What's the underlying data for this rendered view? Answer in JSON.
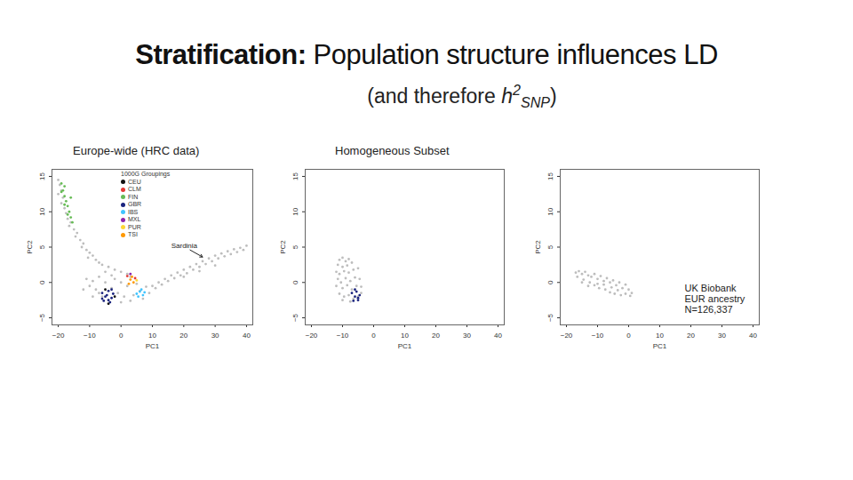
{
  "title": [
    {
      "text": "Stratification:",
      "style": "bold"
    },
    {
      "text": " Population structure influences LD"
    }
  ],
  "subtitle": [
    {
      "text": "(and therefore "
    },
    {
      "text": "h",
      "style": "italic"
    },
    {
      "text": "2",
      "style": "italic-sup"
    },
    {
      "text": "SNP",
      "style": "italic-sub"
    },
    {
      "text": ")"
    }
  ],
  "chart_data": [
    {
      "type": "scatter",
      "title": "Europe-wide (HRC data)",
      "x_label": "PC1",
      "y_label": "PC2",
      "xlim": [
        -22,
        42
      ],
      "ylim": [
        -6,
        16
      ],
      "xticks": [
        -20,
        -10,
        0,
        10,
        20,
        30,
        40
      ],
      "yticks": [
        -5,
        0,
        5,
        10,
        15
      ],
      "legend": "top",
      "legend_title": "1000G Groupings",
      "series": [
        {
          "color": "#bdbdbd",
          "x": [
            -20,
            -19.5,
            -19,
            -20,
            -18.5,
            -19,
            -18,
            -17.5,
            -17,
            -16,
            -16.5,
            -15,
            -14,
            -14.5,
            -13,
            -12,
            -12.5,
            -11,
            -10,
            -9,
            -10.5,
            -8,
            -7,
            -6,
            -4,
            -2,
            0,
            2,
            -5,
            -3,
            -11,
            -10,
            -9,
            -8,
            -7,
            -6,
            -5,
            -4,
            -3,
            -2,
            -1,
            0,
            1,
            2,
            3,
            4,
            5,
            6,
            7,
            8,
            -9,
            -12,
            -7,
            0,
            3,
            9,
            10,
            11,
            12,
            13,
            14,
            15,
            16,
            17,
            18,
            19,
            20,
            21,
            22,
            23,
            24,
            25,
            26,
            27,
            28,
            29,
            30,
            31,
            32,
            33,
            34,
            35,
            36,
            37,
            38,
            39,
            40,
            30,
            25,
            20
          ],
          "y": [
            14.5,
            13.8,
            13,
            12.5,
            12,
            11.2,
            10.5,
            9.8,
            9,
            8.5,
            8,
            7.5,
            7,
            6.5,
            6,
            5.5,
            5,
            4.6,
            4.2,
            3.8,
            3.5,
            3.2,
            2.8,
            2.5,
            2.2,
            1.8,
            1.5,
            1.2,
            1.5,
            1,
            0.5,
            -0.5,
            0.2,
            -1,
            0.8,
            -2,
            0,
            -2.5,
            -0.8,
            0.5,
            -1.5,
            0,
            -2,
            -0.5,
            0.8,
            -1.8,
            -0.2,
            -1.2,
            -2.3,
            -0.6,
            -2,
            -1,
            -1.5,
            -2.8,
            -2.6,
            -1.5,
            -0.5,
            -0.8,
            0,
            -0.3,
            0.5,
            0.2,
            1,
            0.6,
            1.4,
            1,
            1.8,
            1.3,
            2.2,
            1.8,
            2.6,
            2.2,
            3,
            2.6,
            3.4,
            3,
            3.8,
            3.4,
            4.1,
            3.7,
            4.4,
            4,
            4.7,
            4.3,
            4.9,
            4.6,
            5.2,
            2.4,
            1.6,
            0.8
          ]
        },
        {
          "name": "CEU",
          "color": "#111111",
          "x": [
            -5,
            -2,
            -4
          ],
          "y": [
            -1,
            -2,
            -3
          ]
        },
        {
          "name": "CLM",
          "color": "#e53935",
          "x": [
            4.5,
            2
          ],
          "y": [
            0.6,
            0.9
          ]
        },
        {
          "name": "FIN",
          "color": "#66bb55",
          "x": [
            -19,
            -18.5,
            -18,
            -19,
            -17.5,
            -17,
            -18,
            -16.5,
            -16,
            -17,
            -15.5,
            -16,
            -18
          ],
          "y": [
            14,
            13,
            12.2,
            12.8,
            11.5,
            10.8,
            11,
            10,
            9.2,
            9.6,
            8.5,
            12,
            13.6
          ]
        },
        {
          "name": "GBR",
          "color": "#1a237e",
          "x": [
            -6,
            -5,
            -4,
            -3,
            -5.5,
            -4.5,
            -3.5,
            -2.5,
            -6,
            -4,
            -3
          ],
          "y": [
            -1.5,
            -2,
            -1.2,
            -2.2,
            -2.6,
            -1.8,
            -2.8,
            -1.6,
            -2.3,
            -2.5,
            -1
          ]
        },
        {
          "name": "IBS",
          "color": "#40c4ff",
          "x": [
            5,
            6,
            7,
            6.5,
            5.5,
            7.5
          ],
          "y": [
            -1.6,
            -1.3,
            -1.8,
            -1,
            -2,
            -1.4
          ]
        },
        {
          "name": "MXL",
          "color": "#8e24aa",
          "x": [
            3
          ],
          "y": [
            1.2
          ]
        },
        {
          "name": "PUR",
          "color": "#fdd835",
          "x": [
            5
          ],
          "y": [
            0.3
          ]
        },
        {
          "name": "TSI",
          "color": "#ff9800",
          "x": [
            3,
            4,
            3.5,
            2.5
          ],
          "y": [
            0.4,
            0,
            0.8,
            -0.2
          ]
        }
      ],
      "annotations": [
        {
          "lines": [
            "Sardinia"
          ],
          "x": 16,
          "y": 5.6,
          "arrow_from": [
            22,
            4.6
          ],
          "arrow_to": [
            26,
            3.6
          ]
        }
      ]
    },
    {
      "type": "scatter",
      "title": "Homogeneous Subset",
      "x_label": "PC1",
      "y_label": "PC2",
      "xlim": [
        -22,
        42
      ],
      "ylim": [
        -6,
        16
      ],
      "xticks": [
        -20,
        -10,
        0,
        10,
        20,
        30,
        40
      ],
      "yticks": [
        -5,
        0,
        5,
        10,
        15
      ],
      "series": [
        {
          "color": "#bdbdbd",
          "x": [
            -11,
            -10,
            -9,
            -8,
            -11.5,
            -10,
            -8.5,
            -7,
            -12,
            -11,
            -9.5,
            -8,
            -6.5,
            -5,
            -11.5,
            -10.5,
            -9,
            -7.5,
            -6,
            -4.5,
            -12,
            -10,
            -8.5,
            -7,
            -5.5,
            -4,
            -11,
            -9.5,
            -8,
            -6.5,
            -5,
            -4,
            -10,
            -7.5
          ],
          "y": [
            3.2,
            3.5,
            3,
            3.3,
            2.5,
            2.2,
            2.4,
            2.8,
            1.5,
            1.2,
            1.6,
            1.4,
            1.8,
            2,
            0.5,
            0,
            0.6,
            0.2,
            0.7,
            0.5,
            -0.5,
            -0.8,
            -0.4,
            -1,
            -0.5,
            -0.6,
            -1.6,
            -2,
            -1.8,
            -2.3,
            -2,
            -1.5,
            -2.5,
            -2.7
          ]
        },
        {
          "color": "#1a237e",
          "x": [
            -7,
            -6,
            -5.5,
            -5,
            -6.5,
            -4.5,
            -6,
            -5
          ],
          "y": [
            -1.5,
            -2,
            -1.3,
            -2.5,
            -2.6,
            -1.8,
            -1,
            -2.2
          ]
        }
      ]
    },
    {
      "type": "scatter",
      "x_label": "PC1",
      "y_label": "PC2",
      "xlim": [
        -22,
        42
      ],
      "ylim": [
        -6,
        16
      ],
      "xticks": [
        -20,
        -10,
        0,
        10,
        20,
        30,
        40
      ],
      "yticks": [
        -5,
        0,
        5,
        10,
        15
      ],
      "series": [
        {
          "color": "#bdbdbd",
          "x": [
            -17,
            -16,
            -15,
            -16.5,
            -14,
            -13,
            -14.5,
            -12,
            -11,
            -12.5,
            -10,
            -9,
            -11,
            -8,
            -7,
            -9.5,
            -6,
            -5,
            -7.5,
            -4,
            -3,
            -6,
            -2,
            -1,
            -4.5,
            0,
            1,
            -2.5,
            -1,
            0.5,
            -13,
            -15,
            -8,
            -10,
            -3.5,
            -5.5
          ],
          "y": [
            1.4,
            1.6,
            1.2,
            0.8,
            1.5,
            1,
            0.4,
            0.8,
            1.2,
            0,
            0.5,
            0.9,
            -0.4,
            0.2,
            0.6,
            -0.8,
            0,
            0.3,
            -1,
            -0.4,
            0,
            -1.4,
            -0.8,
            -0.3,
            -1.6,
            -1,
            -1.5,
            -1.8,
            -1.6,
            -1.9,
            -0.5,
            0,
            -0.3,
            -0.2,
            -1.1,
            -0.7
          ]
        }
      ],
      "annotations": [
        {
          "lines": [
            "UK Biobank",
            "EUR ancestry",
            "N=126,337"
          ],
          "x": 18,
          "y": -0.2
        }
      ]
    }
  ]
}
